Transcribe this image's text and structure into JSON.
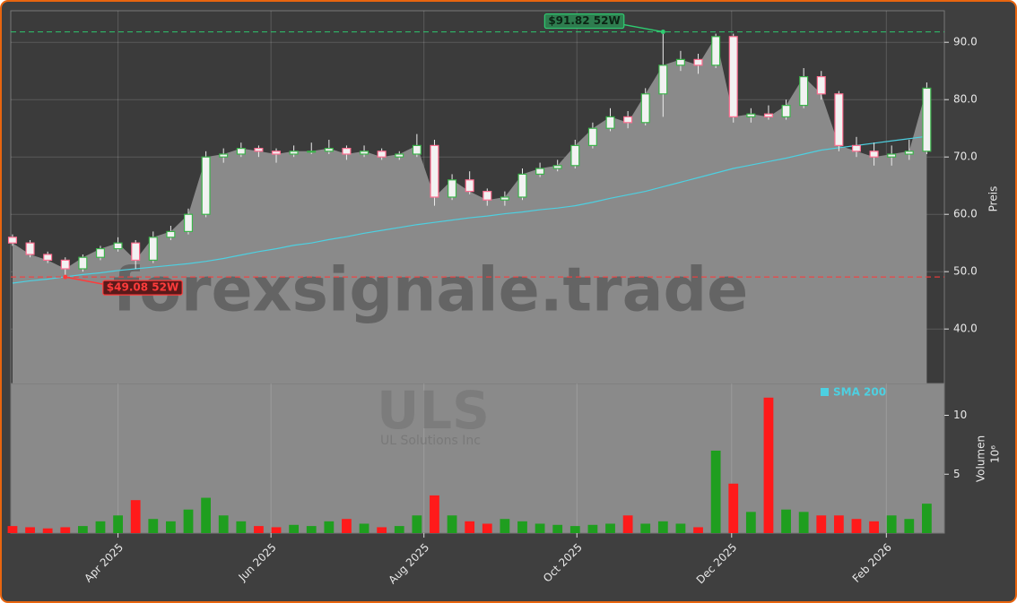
{
  "chart_data": [
    {
      "type": "candlestick",
      "ylabel": "Preis",
      "ylim": [
        30.5,
        95.5
      ],
      "yticks": [
        {
          "value": 40,
          "label": "40.0"
        },
        {
          "value": 50,
          "label": "50.0"
        },
        {
          "value": 60,
          "label": "60.0"
        },
        {
          "value": 70,
          "label": "70.0"
        },
        {
          "value": 80,
          "label": "80.0"
        },
        {
          "value": 90,
          "label": "90.0"
        }
      ],
      "open": [
        56,
        55,
        53,
        52,
        50.5,
        52.5,
        54,
        55,
        52,
        56,
        57,
        60,
        70,
        70.5,
        71.5,
        71,
        70.5,
        71,
        71,
        71.5,
        70.5,
        71,
        70,
        70.5,
        72,
        63,
        66,
        64,
        62.5,
        63,
        67,
        68,
        68.5,
        72,
        75,
        77,
        76,
        81,
        86,
        87,
        86,
        91,
        77,
        77.5,
        77,
        79,
        84,
        81,
        72,
        71,
        70,
        70.5,
        71
      ],
      "high": [
        56.5,
        55.5,
        53.5,
        52.5,
        53,
        54.5,
        56,
        55.5,
        57,
        58,
        61,
        71,
        71.5,
        72.5,
        72,
        71.5,
        72,
        72.5,
        73,
        72,
        72,
        71.5,
        71,
        74,
        73,
        67,
        67.5,
        64.5,
        64,
        68,
        69,
        69.5,
        73,
        76,
        78.5,
        78,
        82,
        91.82,
        88.5,
        88,
        91.5,
        91.5,
        78.5,
        79,
        80,
        85.5,
        85,
        81.5,
        73.5,
        72.5,
        72,
        73,
        83
      ],
      "low": [
        54.5,
        52.5,
        51.5,
        49.08,
        50,
        52,
        53.5,
        50.5,
        51.5,
        55.5,
        56.5,
        59.5,
        69,
        70,
        70,
        69,
        70,
        70.5,
        70.5,
        69.5,
        70,
        69.5,
        69.5,
        70,
        61.5,
        62.5,
        63.5,
        61.5,
        61.5,
        62.5,
        66.5,
        67.5,
        68,
        71.5,
        74.5,
        75,
        75.5,
        77,
        85,
        84.5,
        85.5,
        76,
        76,
        76.5,
        76.5,
        78.5,
        80,
        71,
        70,
        68.5,
        68.5,
        69.5,
        70.5
      ],
      "close": [
        55,
        53,
        52,
        50.5,
        52.5,
        54,
        55,
        52,
        56,
        57,
        60,
        70,
        70.5,
        71.5,
        71,
        70.5,
        71,
        71,
        71.5,
        70.5,
        71,
        70,
        70.5,
        72,
        63,
        66,
        64,
        62.5,
        63,
        67,
        68,
        68.5,
        72,
        75,
        77,
        76,
        81,
        86,
        87,
        86,
        91,
        77,
        77.5,
        77,
        79,
        84,
        81,
        72,
        71,
        70,
        70.5,
        71,
        82
      ],
      "up_color": "#3cb44b",
      "down_color": "#ff6f91",
      "area_color": "#8a8a8a",
      "series": [
        {
          "name": "SMA 200",
          "color": "#4dd0e1",
          "values": [
            48.0,
            48.4,
            48.7,
            49.1,
            49.5,
            49.8,
            50.2,
            50.5,
            50.8,
            51.1,
            51.4,
            51.8,
            52.3,
            52.9,
            53.5,
            54.0,
            54.6,
            55.0,
            55.6,
            56.1,
            56.7,
            57.2,
            57.7,
            58.2,
            58.6,
            59.0,
            59.4,
            59.7,
            60.1,
            60.4,
            60.8,
            61.1,
            61.5,
            62.1,
            62.8,
            63.4,
            64.0,
            64.8,
            65.6,
            66.4,
            67.2,
            68.0,
            68.6,
            69.2,
            69.8,
            70.5,
            71.2,
            71.6,
            72.0,
            72.4,
            72.8,
            73.2,
            73.6
          ]
        }
      ],
      "annotations": [
        {
          "label": "$91.82 52W",
          "value": 91.82,
          "color": "#2ecc71"
        },
        {
          "label": "$49.08 52W",
          "value": 49.08,
          "color": "#ff3b3b"
        }
      ],
      "grid": true
    },
    {
      "type": "bar",
      "ylabel": "Volumen",
      "unit": "10⁶",
      "ylim": [
        0,
        12.7
      ],
      "yticks": [
        5,
        10
      ],
      "xlim": [
        -0.1,
        53.0
      ],
      "xticks": [
        {
          "value": 6.0,
          "label": "Apr 2025"
        },
        {
          "value": 14.7,
          "label": "Jun 2025"
        },
        {
          "value": 23.4,
          "label": "Aug 2025"
        },
        {
          "value": 32.1,
          "label": "Oct 2025"
        },
        {
          "value": 40.9,
          "label": "Dec 2025"
        },
        {
          "value": 49.7,
          "label": "Feb 2026"
        }
      ],
      "values": [
        0.6,
        0.5,
        0.4,
        0.5,
        0.6,
        1.0,
        1.5,
        2.8,
        1.2,
        1.0,
        2.0,
        3.0,
        1.5,
        1.0,
        0.6,
        0.5,
        0.7,
        0.6,
        1.0,
        1.2,
        0.8,
        0.5,
        0.6,
        1.5,
        3.2,
        1.5,
        1.0,
        0.8,
        1.2,
        1.0,
        0.8,
        0.7,
        0.6,
        0.7,
        0.8,
        1.5,
        0.8,
        1.0,
        0.8,
        0.5,
        7.0,
        4.2,
        1.8,
        11.5,
        2.0,
        1.8,
        1.5,
        1.5,
        1.2,
        1.0,
        1.5,
        1.2,
        2.5
      ],
      "up_color": "#1f9e1f",
      "down_color": "#ff1a1a"
    }
  ],
  "watermark": {
    "site": "forexsignale.trade",
    "ticker": "ULS",
    "company": "UL Solutions Inc"
  }
}
